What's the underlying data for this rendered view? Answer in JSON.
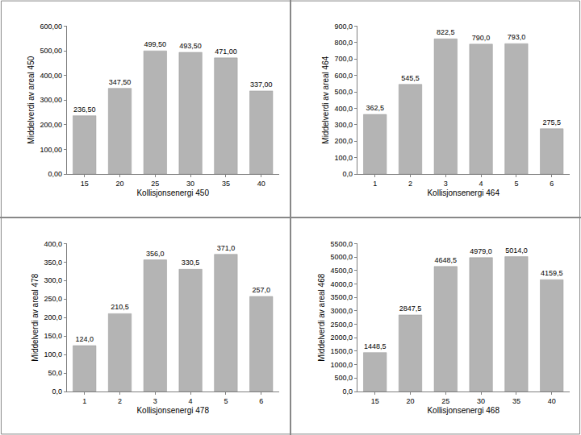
{
  "chart_data": [
    {
      "type": "bar",
      "x_label": "Kollisjonsenergi 450",
      "y_label": "Middelverdi av areal 450",
      "categories": [
        "15",
        "20",
        "25",
        "30",
        "35",
        "40"
      ],
      "values": [
        236.5,
        347.5,
        499.5,
        493.5,
        471,
        337
      ],
      "value_labels": [
        "236,50",
        "347,50",
        "499,50",
        "493,50",
        "471,00",
        "337,00"
      ],
      "color": "#b4b4b4",
      "grid": false,
      "data_labels": true,
      "ylim": [
        0,
        600
      ],
      "yticks": [
        {
          "value": 0,
          "label": "0,00"
        },
        {
          "value": 100,
          "label": "100,00"
        },
        {
          "value": 200,
          "label": "200,00"
        },
        {
          "value": 300,
          "label": "300,00"
        },
        {
          "value": 400,
          "label": "400,00"
        },
        {
          "value": 500,
          "label": "500,00"
        },
        {
          "value": 600,
          "label": "600,00"
        }
      ]
    },
    {
      "type": "bar",
      "x_label": "Kollisjonsenergi 464",
      "y_label": "Middelverdi av areal 464",
      "categories": [
        "1",
        "2",
        "3",
        "4",
        "5",
        "6"
      ],
      "values": [
        362.5,
        545.5,
        822.5,
        790,
        793,
        275.5
      ],
      "value_labels": [
        "362,5",
        "545,5",
        "822,5",
        "790,0",
        "793,0",
        "275,5"
      ],
      "color": "#b4b4b4",
      "grid": false,
      "data_labels": true,
      "ylim": [
        0,
        900
      ],
      "yticks": [
        {
          "value": 0,
          "label": "0,0"
        },
        {
          "value": 100,
          "label": "100,0"
        },
        {
          "value": 200,
          "label": "200,0"
        },
        {
          "value": 300,
          "label": "300,0"
        },
        {
          "value": 400,
          "label": "400,0"
        },
        {
          "value": 500,
          "label": "500,0"
        },
        {
          "value": 600,
          "label": "600,0"
        },
        {
          "value": 700,
          "label": "700,0"
        },
        {
          "value": 800,
          "label": "800,0"
        },
        {
          "value": 900,
          "label": "900,0"
        }
      ]
    },
    {
      "type": "bar",
      "x_label": "Kollisjonsenergi 478",
      "y_label": "Middelverdi av areal 478",
      "categories": [
        "1",
        "2",
        "3",
        "4",
        "5",
        "6"
      ],
      "values": [
        124,
        210.5,
        356,
        330.5,
        371,
        257
      ],
      "value_labels": [
        "124,0",
        "210,5",
        "356,0",
        "330,5",
        "371,0",
        "257,0"
      ],
      "color": "#b4b4b4",
      "grid": false,
      "data_labels": true,
      "ylim": [
        0,
        400
      ],
      "yticks": [
        {
          "value": 0,
          "label": "0,0"
        },
        {
          "value": 50,
          "label": "50,0"
        },
        {
          "value": 100,
          "label": "100,0"
        },
        {
          "value": 150,
          "label": "150,0"
        },
        {
          "value": 200,
          "label": "200,0"
        },
        {
          "value": 250,
          "label": "250,0"
        },
        {
          "value": 300,
          "label": "300,0"
        },
        {
          "value": 350,
          "label": "350,0"
        },
        {
          "value": 400,
          "label": "400,0"
        }
      ]
    },
    {
      "type": "bar",
      "x_label": "Kollisjonsenergi 468",
      "y_label": "Middelverdi av areal 468",
      "categories": [
        "15",
        "20",
        "25",
        "30",
        "35",
        "40"
      ],
      "values": [
        1448.5,
        2847.5,
        4648.5,
        4979,
        5014,
        4159.5
      ],
      "value_labels": [
        "1448,5",
        "2847,5",
        "4648,5",
        "4979,0",
        "5014,0",
        "4159,5"
      ],
      "color": "#b4b4b4",
      "grid": false,
      "data_labels": true,
      "ylim": [
        0,
        5500
      ],
      "yticks": [
        {
          "value": 0,
          "label": "0,0"
        },
        {
          "value": 500,
          "label": "500,0"
        },
        {
          "value": 1000,
          "label": "1000,0"
        },
        {
          "value": 1500,
          "label": "1500,0"
        },
        {
          "value": 2000,
          "label": "2000,0"
        },
        {
          "value": 2500,
          "label": "2500,0"
        },
        {
          "value": 3000,
          "label": "3000,0"
        },
        {
          "value": 3500,
          "label": "3500,0"
        },
        {
          "value": 4000,
          "label": "4000,0"
        },
        {
          "value": 4500,
          "label": "4500,0"
        },
        {
          "value": 5000,
          "label": "5000,0"
        },
        {
          "value": 5500,
          "label": "5500,0"
        }
      ]
    }
  ]
}
